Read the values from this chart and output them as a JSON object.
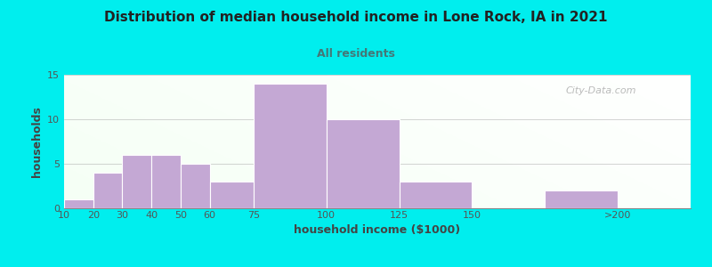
{
  "title": "Distribution of median household income in Lone Rock, IA in 2021",
  "subtitle": "All residents",
  "xlabel": "household income ($1000)",
  "ylabel": "households",
  "background_color": "#00EEEE",
  "bar_color": "#C4A8D4",
  "bar_edgecolor": "#FFFFFF",
  "title_color": "#222222",
  "subtitle_color": "#447777",
  "axis_label_color": "#444444",
  "tick_label_color": "#555555",
  "bar_heights": [
    1,
    4,
    6,
    6,
    5,
    3,
    14,
    10,
    3,
    0,
    2
  ],
  "bar_lefts": [
    10,
    20,
    30,
    40,
    50,
    60,
    75,
    100,
    125,
    150,
    175
  ],
  "bar_widths": [
    10,
    10,
    10,
    10,
    10,
    15,
    25,
    25,
    25,
    25,
    25
  ],
  "ylim": [
    0,
    15
  ],
  "yticks": [
    0,
    5,
    10,
    15
  ],
  "xtick_positions": [
    10,
    20,
    30,
    40,
    50,
    60,
    75,
    100,
    125,
    150,
    200
  ],
  "xtick_labels": [
    "10",
    "20",
    "30",
    "40",
    "50",
    "60",
    "75",
    "100",
    "125",
    "150",
    ">200"
  ],
  "watermark": "City-Data.com",
  "xlim_left": 10,
  "xlim_right": 225
}
